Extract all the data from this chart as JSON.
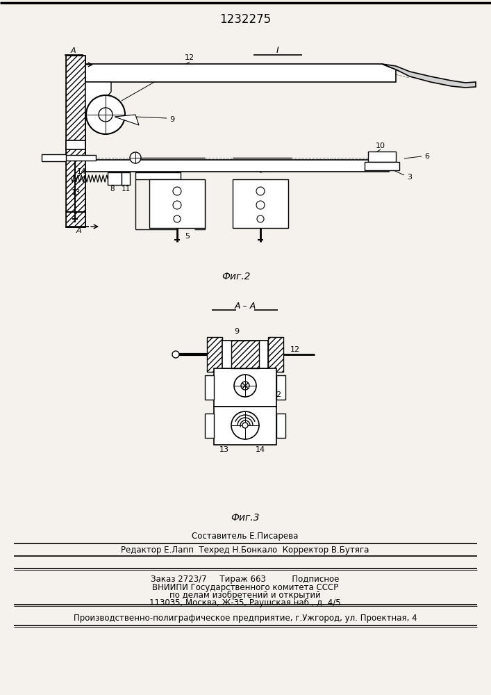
{
  "title": "1232275",
  "bg_color": "#f5f2ee",
  "fig2_label": "Фиг.2",
  "fig3_label": "Фиг.3",
  "footer_lines": [
    "Составитель Е.Писарева",
    "Редактор Е.Лапп  Техред Н.Бонкало  Корректор В.Бутяга",
    "Заказ 2723/7     Тираж 663          Подписное",
    "ВНИИПИ Государственного комитета СССР",
    "по делам изобретений и открытий",
    "113035, Москва, Ж-35, Раушская наб., д. 4/5",
    "Производственно-полиграфическое предприятие, г.Ужгород, ул. Проектная, 4"
  ]
}
